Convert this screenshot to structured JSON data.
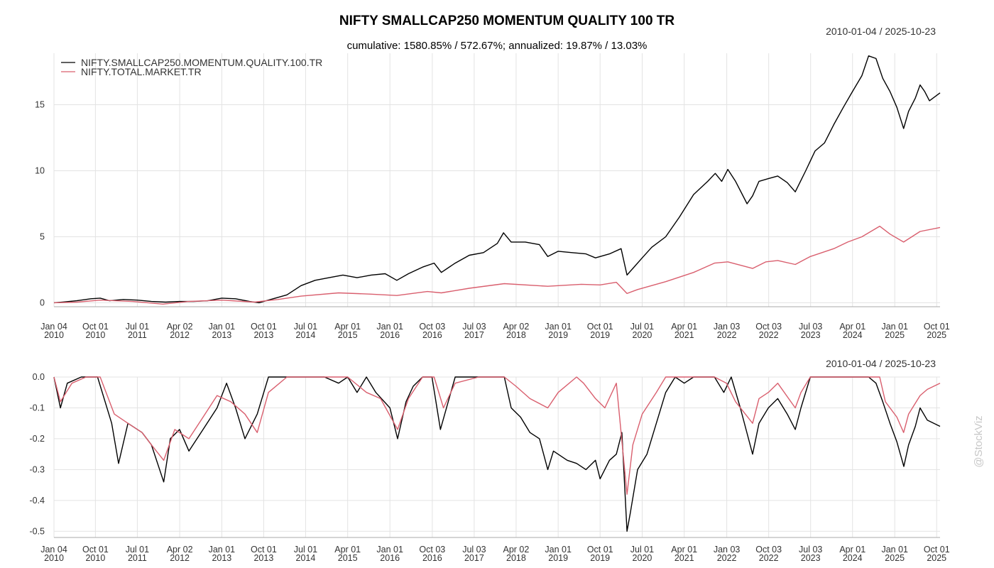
{
  "chart_data": [
    {
      "type": "line",
      "title": "NIFTY SMALLCAP250 MOMENTUM QUALITY 100 TR",
      "subtitle": "cumulative: 1580.85% / 572.67%; annualized: 19.87% / 13.03%",
      "date_range": "2010-01-04 / 2025-10-23",
      "legend_position": "top-left",
      "grid": true,
      "ylim": [
        -0.3,
        18.9
      ],
      "y_ticks": [
        "0",
        "5",
        "10",
        "15"
      ],
      "x_ticks": [
        {
          "date": "2010-01-04",
          "line1": "Jan 04",
          "line2": "2010"
        },
        {
          "date": "2010-10-01",
          "line1": "Oct 01",
          "line2": "2010"
        },
        {
          "date": "2011-07-01",
          "line1": "Jul 01",
          "line2": "2011"
        },
        {
          "date": "2012-04-02",
          "line1": "Apr 02",
          "line2": "2012"
        },
        {
          "date": "2013-01-01",
          "line1": "Jan 01",
          "line2": "2013"
        },
        {
          "date": "2013-10-01",
          "line1": "Oct 01",
          "line2": "2013"
        },
        {
          "date": "2014-07-01",
          "line1": "Jul 01",
          "line2": "2014"
        },
        {
          "date": "2015-04-01",
          "line1": "Apr 01",
          "line2": "2015"
        },
        {
          "date": "2016-01-01",
          "line1": "Jan 01",
          "line2": "2016"
        },
        {
          "date": "2016-10-03",
          "line1": "Oct 03",
          "line2": "2016"
        },
        {
          "date": "2017-07-03",
          "line1": "Jul 03",
          "line2": "2017"
        },
        {
          "date": "2018-04-02",
          "line1": "Apr 02",
          "line2": "2018"
        },
        {
          "date": "2019-01-01",
          "line1": "Jan 01",
          "line2": "2019"
        },
        {
          "date": "2019-10-01",
          "line1": "Oct 01",
          "line2": "2019"
        },
        {
          "date": "2020-07-01",
          "line1": "Jul 01",
          "line2": "2020"
        },
        {
          "date": "2021-04-01",
          "line1": "Apr 01",
          "line2": "2021"
        },
        {
          "date": "2022-01-03",
          "line1": "Jan 03",
          "line2": "2022"
        },
        {
          "date": "2022-10-03",
          "line1": "Oct 03",
          "line2": "2022"
        },
        {
          "date": "2023-07-03",
          "line1": "Jul 03",
          "line2": "2023"
        },
        {
          "date": "2024-04-01",
          "line1": "Apr 01",
          "line2": "2024"
        },
        {
          "date": "2025-01-01",
          "line1": "Jan 01",
          "line2": "2025"
        },
        {
          "date": "2025-10-01",
          "line1": "Oct 01",
          "line2": "2025"
        }
      ],
      "series": [
        {
          "name": "NIFTY.SMALLCAP250.MOMENTUM.QUALITY.100.TR",
          "color": "#000000",
          "x": [
            "2010-01-04",
            "2010-03-01",
            "2010-06-01",
            "2010-09-01",
            "2010-11-01",
            "2011-01-01",
            "2011-04-01",
            "2011-07-01",
            "2011-10-01",
            "2012-01-01",
            "2012-04-01",
            "2012-07-01",
            "2012-10-01",
            "2013-01-01",
            "2013-04-01",
            "2013-07-01",
            "2013-09-01",
            "2013-12-01",
            "2014-03-01",
            "2014-06-01",
            "2014-09-01",
            "2014-12-01",
            "2015-03-01",
            "2015-06-01",
            "2015-09-01",
            "2015-12-01",
            "2016-02-15",
            "2016-05-01",
            "2016-08-01",
            "2016-10-15",
            "2016-12-01",
            "2017-03-01",
            "2017-06-01",
            "2017-09-01",
            "2017-12-01",
            "2018-01-10",
            "2018-03-01",
            "2018-06-01",
            "2018-09-01",
            "2018-10-25",
            "2019-01-01",
            "2019-04-01",
            "2019-07-01",
            "2019-09-01",
            "2019-12-01",
            "2020-02-15",
            "2020-03-24",
            "2020-05-01",
            "2020-07-01",
            "2020-09-01",
            "2020-12-01",
            "2021-03-01",
            "2021-06-01",
            "2021-09-01",
            "2021-10-20",
            "2021-12-01",
            "2022-01-10",
            "2022-03-01",
            "2022-05-15",
            "2022-06-20",
            "2022-08-01",
            "2022-10-01",
            "2022-12-01",
            "2023-02-01",
            "2023-03-25",
            "2023-06-01",
            "2023-08-01",
            "2023-10-01",
            "2023-12-01",
            "2024-02-01",
            "2024-04-01",
            "2024-06-01",
            "2024-07-15",
            "2024-09-01",
            "2024-10-15",
            "2024-12-01",
            "2025-01-15",
            "2025-02-28",
            "2025-04-01",
            "2025-05-15",
            "2025-06-15",
            "2025-07-15",
            "2025-08-15",
            "2025-10-23"
          ],
          "values": [
            0.0,
            0.05,
            0.15,
            0.3,
            0.35,
            0.15,
            0.25,
            0.2,
            0.1,
            0.05,
            0.1,
            0.1,
            0.15,
            0.35,
            0.3,
            0.1,
            0.0,
            0.3,
            0.6,
            1.3,
            1.7,
            1.9,
            2.1,
            1.9,
            2.1,
            2.2,
            1.7,
            2.2,
            2.7,
            3.0,
            2.3,
            3.0,
            3.6,
            3.8,
            4.5,
            5.3,
            4.6,
            4.6,
            4.4,
            3.5,
            3.9,
            3.8,
            3.7,
            3.4,
            3.7,
            4.1,
            2.1,
            2.6,
            3.4,
            4.2,
            5.0,
            6.5,
            8.2,
            9.2,
            9.8,
            9.2,
            10.1,
            9.2,
            7.5,
            8.1,
            9.2,
            9.4,
            9.6,
            9.1,
            8.4,
            10.0,
            11.5,
            12.1,
            13.5,
            14.8,
            16.0,
            17.2,
            18.7,
            18.5,
            17.0,
            16.0,
            14.8,
            13.2,
            14.5,
            15.5,
            16.5,
            16.0,
            15.3,
            15.9
          ]
        },
        {
          "name": "NIFTY.TOTAL.MARKET.TR",
          "color": "#d95f6e",
          "x": [
            "2010-01-04",
            "2010-06-01",
            "2010-11-01",
            "2011-06-01",
            "2011-12-15",
            "2012-06-01",
            "2013-01-01",
            "2013-08-01",
            "2014-01-01",
            "2014-06-01",
            "2015-02-01",
            "2015-09-01",
            "2016-02-15",
            "2016-09-01",
            "2016-12-01",
            "2017-06-01",
            "2018-01-15",
            "2018-10-25",
            "2019-06-01",
            "2019-10-01",
            "2020-01-15",
            "2020-03-24",
            "2020-06-01",
            "2020-12-01",
            "2021-06-01",
            "2021-10-15",
            "2022-01-10",
            "2022-06-20",
            "2022-09-15",
            "2022-12-01",
            "2023-03-25",
            "2023-07-01",
            "2023-12-01",
            "2024-03-01",
            "2024-06-01",
            "2024-09-25",
            "2024-12-01",
            "2025-02-28",
            "2025-06-15",
            "2025-10-23"
          ],
          "values": [
            0.0,
            0.05,
            0.2,
            0.1,
            -0.1,
            0.1,
            0.2,
            0.05,
            0.25,
            0.5,
            0.75,
            0.65,
            0.55,
            0.85,
            0.75,
            1.1,
            1.45,
            1.25,
            1.4,
            1.35,
            1.55,
            0.7,
            1.0,
            1.6,
            2.3,
            3.0,
            3.1,
            2.6,
            3.1,
            3.2,
            2.9,
            3.5,
            4.1,
            4.6,
            5.0,
            5.8,
            5.2,
            4.6,
            5.4,
            5.7
          ]
        }
      ]
    },
    {
      "type": "line",
      "title": "",
      "date_range": "2010-01-04 / 2025-10-23",
      "grid": true,
      "ylim": [
        -0.52,
        0.0
      ],
      "y_ticks": [
        "0.0",
        "-0.1",
        "-0.2",
        "-0.3",
        "-0.4",
        "-0.5"
      ],
      "series": [
        {
          "name": "NIFTY.SMALLCAP250.MOMENTUM.QUALITY.100.TR",
          "color": "#000000",
          "x": [
            "2010-01-04",
            "2010-02-15",
            "2010-04-01",
            "2010-07-01",
            "2010-10-15",
            "2011-01-15",
            "2011-03-01",
            "2011-05-01",
            "2011-08-01",
            "2011-10-01",
            "2011-12-20",
            "2012-02-01",
            "2012-04-01",
            "2012-06-01",
            "2012-09-01",
            "2012-12-01",
            "2013-02-01",
            "2013-04-01",
            "2013-06-01",
            "2013-08-20",
            "2013-11-01",
            "2014-01-01",
            "2014-04-01",
            "2014-06-01",
            "2014-09-01",
            "2014-11-01",
            "2015-02-01",
            "2015-04-01",
            "2015-06-01",
            "2015-08-01",
            "2015-10-01",
            "2016-01-01",
            "2016-02-20",
            "2016-04-15",
            "2016-06-01",
            "2016-08-01",
            "2016-10-01",
            "2016-11-25",
            "2017-01-15",
            "2017-03-01",
            "2017-06-01",
            "2017-09-01",
            "2017-12-01",
            "2018-01-15",
            "2018-03-01",
            "2018-05-01",
            "2018-07-01",
            "2018-09-01",
            "2018-10-25",
            "2018-12-01",
            "2019-03-01",
            "2019-05-01",
            "2019-07-01",
            "2019-09-01",
            "2019-10-01",
            "2019-12-01",
            "2020-01-15",
            "2020-02-20",
            "2020-03-24",
            "2020-04-15",
            "2020-06-01",
            "2020-08-01",
            "2020-10-01",
            "2020-12-01",
            "2021-02-01",
            "2021-04-01",
            "2021-06-01",
            "2021-08-01",
            "2021-10-15",
            "2021-12-15",
            "2022-02-01",
            "2022-04-01",
            "2022-06-20",
            "2022-08-01",
            "2022-10-01",
            "2022-12-01",
            "2023-02-01",
            "2023-03-25",
            "2023-05-01",
            "2023-07-01",
            "2023-09-01",
            "2023-11-01",
            "2024-01-01",
            "2024-03-01",
            "2024-05-01",
            "2024-07-15",
            "2024-09-01",
            "2024-10-15",
            "2024-12-01",
            "2025-01-15",
            "2025-03-01",
            "2025-04-01",
            "2025-05-15",
            "2025-06-15",
            "2025-08-01",
            "2025-10-23"
          ],
          "values": [
            0.0,
            -0.1,
            -0.02,
            0.0,
            0.0,
            -0.15,
            -0.28,
            -0.15,
            -0.18,
            -0.22,
            -0.34,
            -0.2,
            -0.17,
            -0.24,
            -0.17,
            -0.1,
            -0.02,
            -0.1,
            -0.2,
            -0.12,
            0.0,
            0.0,
            0.0,
            0.0,
            0.0,
            0.0,
            -0.02,
            0.0,
            -0.05,
            0.0,
            -0.05,
            -0.1,
            -0.2,
            -0.08,
            -0.03,
            0.0,
            0.0,
            -0.17,
            -0.08,
            0.0,
            0.0,
            0.0,
            0.0,
            0.0,
            -0.1,
            -0.13,
            -0.18,
            -0.2,
            -0.3,
            -0.24,
            -0.27,
            -0.28,
            -0.3,
            -0.27,
            -0.33,
            -0.27,
            -0.25,
            -0.18,
            -0.5,
            -0.44,
            -0.3,
            -0.25,
            -0.15,
            -0.05,
            0.0,
            -0.02,
            0.0,
            0.0,
            0.0,
            -0.05,
            0.0,
            -0.1,
            -0.25,
            -0.15,
            -0.1,
            -0.07,
            -0.12,
            -0.17,
            -0.1,
            0.0,
            0.0,
            0.0,
            0.0,
            0.0,
            0.0,
            0.0,
            -0.02,
            -0.08,
            -0.15,
            -0.21,
            -0.29,
            -0.22,
            -0.16,
            -0.1,
            -0.14,
            -0.16
          ]
        },
        {
          "name": "NIFTY.TOTAL.MARKET.TR",
          "color": "#d95f6e",
          "x": [
            "2010-01-04",
            "2010-02-15",
            "2010-05-01",
            "2010-08-01",
            "2010-11-01",
            "2011-02-01",
            "2011-05-01",
            "2011-08-01",
            "2011-10-01",
            "2011-12-20",
            "2012-03-01",
            "2012-06-01",
            "2012-09-01",
            "2012-12-01",
            "2013-03-01",
            "2013-06-01",
            "2013-08-20",
            "2013-11-01",
            "2014-03-01",
            "2014-06-01",
            "2015-01-01",
            "2015-04-01",
            "2015-08-01",
            "2015-11-01",
            "2016-02-20",
            "2016-05-01",
            "2016-08-01",
            "2016-10-15",
            "2016-12-15",
            "2017-03-01",
            "2017-08-01",
            "2018-01-15",
            "2018-04-01",
            "2018-07-01",
            "2018-10-25",
            "2019-01-01",
            "2019-05-01",
            "2019-06-15",
            "2019-09-01",
            "2019-11-01",
            "2020-01-15",
            "2020-03-24",
            "2020-05-01",
            "2020-07-01",
            "2020-10-01",
            "2020-12-01",
            "2021-03-01",
            "2021-06-01",
            "2021-10-15",
            "2022-01-01",
            "2022-03-01",
            "2022-06-20",
            "2022-08-01",
            "2022-10-01",
            "2022-12-01",
            "2023-03-25",
            "2023-05-01",
            "2023-07-01",
            "2023-10-01",
            "2024-01-01",
            "2024-04-01",
            "2024-06-01",
            "2024-09-25",
            "2024-11-01",
            "2025-01-15",
            "2025-02-28",
            "2025-04-01",
            "2025-06-15",
            "2025-08-01",
            "2025-10-23"
          ],
          "values": [
            0.0,
            -0.08,
            -0.02,
            0.0,
            0.0,
            -0.12,
            -0.15,
            -0.18,
            -0.22,
            -0.27,
            -0.17,
            -0.2,
            -0.13,
            -0.06,
            -0.08,
            -0.12,
            -0.18,
            -0.05,
            0.0,
            0.0,
            0.0,
            0.0,
            -0.05,
            -0.07,
            -0.17,
            -0.07,
            0.0,
            0.0,
            -0.1,
            -0.02,
            0.0,
            0.0,
            -0.03,
            -0.07,
            -0.1,
            -0.05,
            0.0,
            -0.02,
            -0.07,
            -0.1,
            -0.02,
            -0.38,
            -0.22,
            -0.12,
            -0.05,
            0.0,
            0.0,
            0.0,
            0.0,
            -0.02,
            -0.08,
            -0.15,
            -0.07,
            -0.05,
            -0.02,
            -0.1,
            -0.05,
            0.0,
            0.0,
            0.0,
            0.0,
            0.0,
            0.0,
            -0.08,
            -0.13,
            -0.18,
            -0.12,
            -0.06,
            -0.04,
            -0.02
          ]
        }
      ]
    }
  ],
  "watermark": "@StockViz"
}
